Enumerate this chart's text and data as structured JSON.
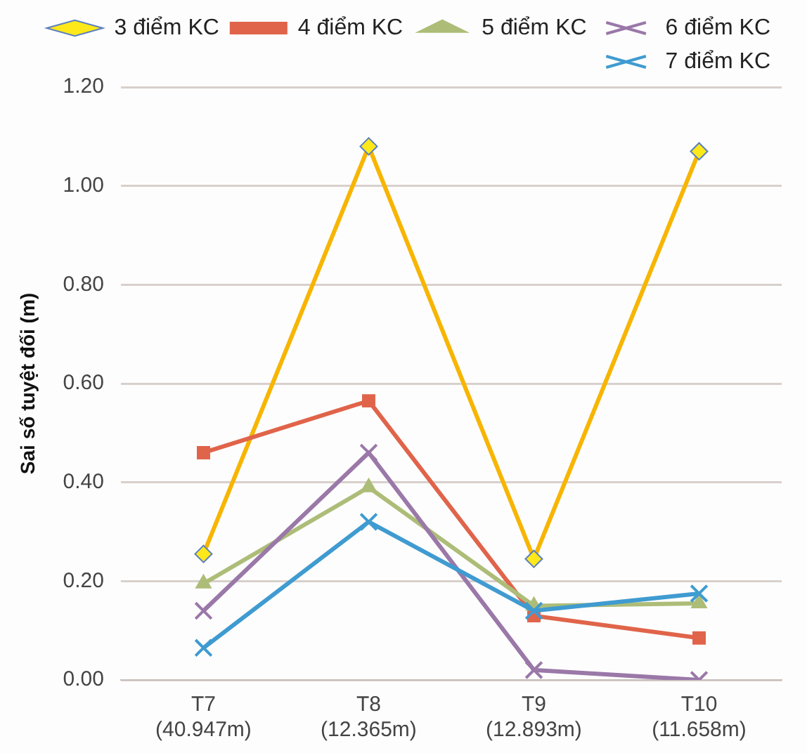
{
  "chart_data": {
    "type": "line",
    "ylabel": "Sai số tuyệt đối (m)",
    "categories": [
      "T7\n(40.947m)",
      "T8\n(12.365m)",
      "T9\n(12.893m)",
      "T10\n(11.658m)"
    ],
    "series": [
      {
        "name": "3 điểm KC",
        "color": "#f7b500",
        "marker": "diamond",
        "values": [
          0.255,
          1.08,
          0.245,
          1.07
        ]
      },
      {
        "name": "4 điểm KC",
        "color": "#e0644a",
        "marker": "square",
        "values": [
          0.46,
          0.565,
          0.13,
          0.085
        ]
      },
      {
        "name": "5 điểm KC",
        "color": "#adbd78",
        "marker": "triangle",
        "values": [
          0.195,
          0.39,
          0.15,
          0.155
        ]
      },
      {
        "name": "6 điểm KC",
        "color": "#9a78a8",
        "marker": "cross",
        "values": [
          0.14,
          0.46,
          0.02,
          0.0
        ]
      },
      {
        "name": "7 điểm KC",
        "color": "#3f9bd0",
        "marker": "cross",
        "values": [
          0.065,
          0.32,
          0.14,
          0.175
        ]
      }
    ],
    "ylim": [
      0,
      1.2
    ],
    "yticks": [
      {
        "value": 0,
        "label": "0.00"
      },
      {
        "value": 0.2,
        "label": "0.20"
      },
      {
        "value": 0.4,
        "label": "0.40"
      },
      {
        "value": 0.6,
        "label": "0.60"
      },
      {
        "value": 0.8,
        "label": "0.80"
      },
      {
        "value": 1.0,
        "label": "1.00"
      },
      {
        "value": 1.2,
        "label": "1.20"
      }
    ],
    "grid": "y",
    "legend": "top",
    "line_style": "solid"
  }
}
